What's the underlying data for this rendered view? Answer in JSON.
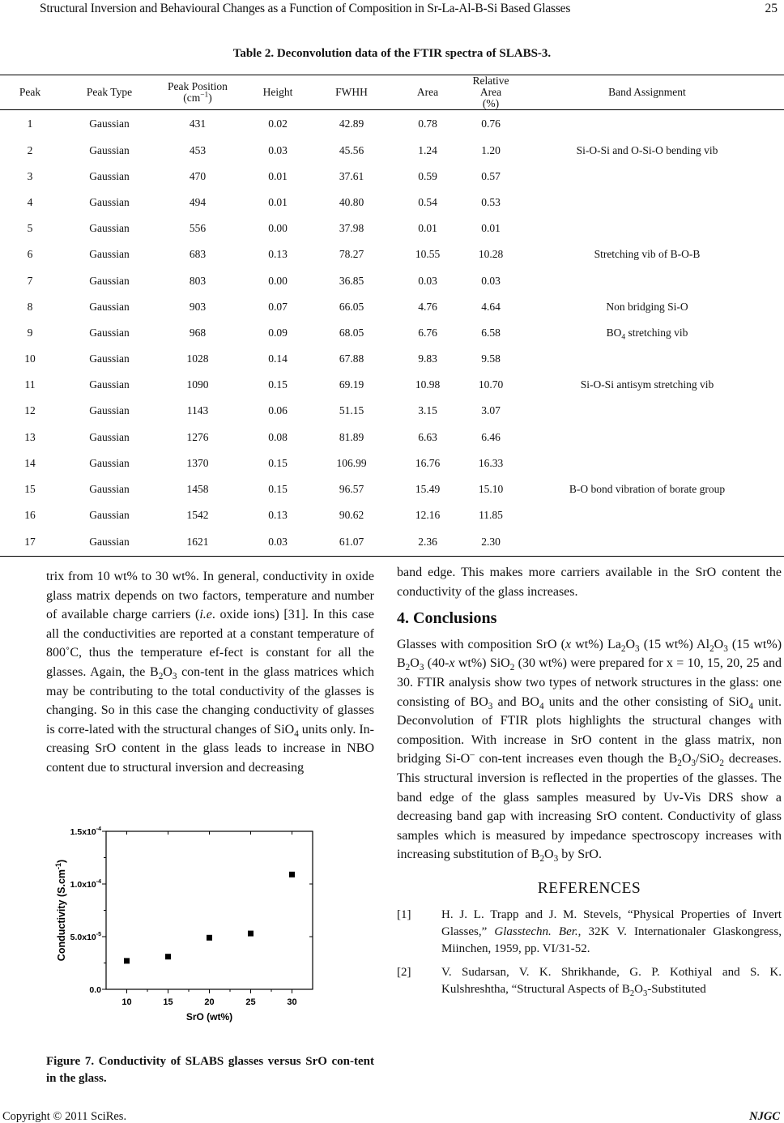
{
  "header": {
    "title": "Structural Inversion and Behavioural Changes as a Function of Composition in Sr-La-Al-B-Si Based Glasses",
    "page": "25"
  },
  "table": {
    "caption": "Table 2. Deconvolution data of the FTIR spectra of SLABS-3.",
    "columns": [
      "Peak",
      "Peak Type",
      "Peak Position",
      "Height",
      "FWHH",
      "Area",
      "Relative Area",
      "Band Assignment"
    ],
    "column_subs": {
      "position_unit_pre": "(cm",
      "position_unit_sup": "−1",
      "position_unit_post": ")",
      "rel_unit": "(%)"
    },
    "rows": [
      [
        "1",
        "Gaussian",
        "431",
        "0.02",
        "42.89",
        "0.78",
        "0.76",
        ""
      ],
      [
        "2",
        "Gaussian",
        "453",
        "0.03",
        "45.56",
        "1.24",
        "1.20",
        "Si-O-Si and O-Si-O bending vib"
      ],
      [
        "3",
        "Gaussian",
        "470",
        "0.01",
        "37.61",
        "0.59",
        "0.57",
        ""
      ],
      [
        "4",
        "Gaussian",
        "494",
        "0.01",
        "40.80",
        "0.54",
        "0.53",
        ""
      ],
      [
        "5",
        "Gaussian",
        "556",
        "0.00",
        "37.98",
        "0.01",
        "0.01",
        ""
      ],
      [
        "6",
        "Gaussian",
        "683",
        "0.13",
        "78.27",
        "10.55",
        "10.28",
        "Stretching vib of B-O-B"
      ],
      [
        "7",
        "Gaussian",
        "803",
        "0.00",
        "36.85",
        "0.03",
        "0.03",
        ""
      ],
      [
        "8",
        "Gaussian",
        "903",
        "0.07",
        "66.05",
        "4.76",
        "4.64",
        "Non bridging Si-O"
      ],
      [
        "9",
        "Gaussian",
        "968",
        "0.09",
        "68.05",
        "6.76",
        "6.58",
        "BO|4| stretching vib"
      ],
      [
        "10",
        "Gaussian",
        "1028",
        "0.14",
        "67.88",
        "9.83",
        "9.58",
        ""
      ],
      [
        "11",
        "Gaussian",
        "1090",
        "0.15",
        "69.19",
        "10.98",
        "10.70",
        "Si-O-Si antisym stretching vib"
      ],
      [
        "12",
        "Gaussian",
        "1143",
        "0.06",
        "51.15",
        "3.15",
        "3.07",
        ""
      ],
      [
        "13",
        "Gaussian",
        "1276",
        "0.08",
        "81.89",
        "6.63",
        "6.46",
        ""
      ],
      [
        "14",
        "Gaussian",
        "1370",
        "0.15",
        "106.99",
        "16.76",
        "16.33",
        ""
      ],
      [
        "15",
        "Gaussian",
        "1458",
        "0.15",
        "96.57",
        "15.49",
        "15.10",
        "B-O bond vibration of borate group"
      ],
      [
        "16",
        "Gaussian",
        "1542",
        "0.13",
        "90.62",
        "12.16",
        "11.85",
        ""
      ],
      [
        "17",
        "Gaussian",
        "1621",
        "0.03",
        "61.07",
        "2.36",
        "2.30",
        ""
      ]
    ]
  },
  "left_text": [
    [
      "trix from 10 wt% to 30 wt%. In general, conductivity in oxide glass matrix depends on two factors, temperature and number of available charge carriers (",
      {
        "i": "i.e"
      },
      ". oxide ions) [31]. In this case all the conductivities are reported at a constant temperature of 800˚C, thus the temperature ef-fect is constant for all the glasses. Again, the B",
      {
        "sub": "2"
      },
      "O",
      {
        "sub": "3"
      },
      " con-tent in the glass matrices which may be contributing to the total conductivity of the glasses is changing. So in this case the changing conductivity of glasses is corre-lated with the structural changes of SiO",
      {
        "sub": "4"
      },
      " units only. In-creasing SrO content in the glass leads to increase in NBO content due to structural inversion and decreasing"
    ]
  ],
  "right_text": {
    "p1": [
      "band edge. This makes more carriers available in the SrO content the conductivity of the glass increases."
    ],
    "heading": "4. Conclusions",
    "p2": [
      "Glasses with composition SrO (",
      {
        "i": "x"
      },
      " wt%) La",
      {
        "sub": "2"
      },
      "O",
      {
        "sub": "3"
      },
      " (15 wt%) Al",
      {
        "sub": "2"
      },
      "O",
      {
        "sub": "3"
      },
      " (15 wt%) B",
      {
        "sub": "2"
      },
      "O",
      {
        "sub": "3"
      },
      " (40-",
      {
        "i": "x"
      },
      " wt%) SiO",
      {
        "sub": "2"
      },
      " (30 wt%) were prepared for x = 10, 15, 20, 25 and 30. FTIR analysis show two types of network structures in the glass: one consisting of BO",
      {
        "sub": "3"
      },
      " and BO",
      {
        "sub": "4"
      },
      " units and the other consisting of SiO",
      {
        "sub": "4"
      },
      " unit. Deconvolution of FTIR plots highlights the structural changes with composition. With increase in SrO content in the glass matrix, non bridging Si-O",
      {
        "sup": "–"
      },
      " con-tent increases even though the B",
      {
        "sub": "2"
      },
      "O",
      {
        "sub": "3"
      },
      "/SiO",
      {
        "sub": "2"
      },
      " decreases. This structural inversion is reflected in the properties of the glasses. The band edge of the glass samples measured by Uv-Vis DRS show a decreasing band gap with increasing SrO content. Conductivity of glass samples which is measured by impedance spectroscopy increases with increasing substitution of B",
      {
        "sub": "2"
      },
      "O",
      {
        "sub": "3"
      },
      " by SrO."
    ],
    "ref_heading": "REFERENCES",
    "refs": [
      {
        "k": "[1]",
        "t": [
          "H. J. L. Trapp and J. M. Stevels, “Physical Properties of Invert Glasses,” ",
          {
            "i": "Glasstechn. Ber."
          },
          ", 32K V. Internationaler Glaskongress, Miinchen, 1959, pp. VI/31-52."
        ]
      },
      {
        "k": "[2]",
        "t": [
          "V. Sudarsan, V. K. Shrikhande, G. P. Kothiyal and S. K. Kulshreshtha, “Structural Aspects of B",
          {
            "sub": "2"
          },
          "O",
          {
            "sub": "3"
          },
          "-Substituted"
        ]
      }
    ]
  },
  "figure_caption": "Figure 7. Conductivity of SLABS glasses versus SrO con-tent in the glass.",
  "chart_data": {
    "type": "scatter",
    "x": [
      10,
      15,
      20,
      25,
      30
    ],
    "y": [
      2.7e-05,
      3.1e-05,
      4.9e-05,
      5.3e-05,
      0.000109
    ],
    "xlabel": "SrO (wt%)",
    "ylabel": "Conductivity (S.cm-1)",
    "xlim": [
      7.5,
      32.5
    ],
    "ylim": [
      0,
      0.00015
    ],
    "xticks": [
      "10",
      "15",
      "20",
      "25",
      "30"
    ],
    "yticks": [
      {
        "m": "0.0",
        "e": ""
      },
      {
        "m": "5.0x10",
        "e": "-5"
      },
      {
        "m": "1.0x10",
        "e": "-4"
      },
      {
        "m": "1.5x10",
        "e": "-4"
      }
    ],
    "marker": "square",
    "color": "#000000",
    "grid": false
  },
  "footer": {
    "copyright": "Copyright © 2011 SciRes.",
    "journal": "NJGC"
  }
}
